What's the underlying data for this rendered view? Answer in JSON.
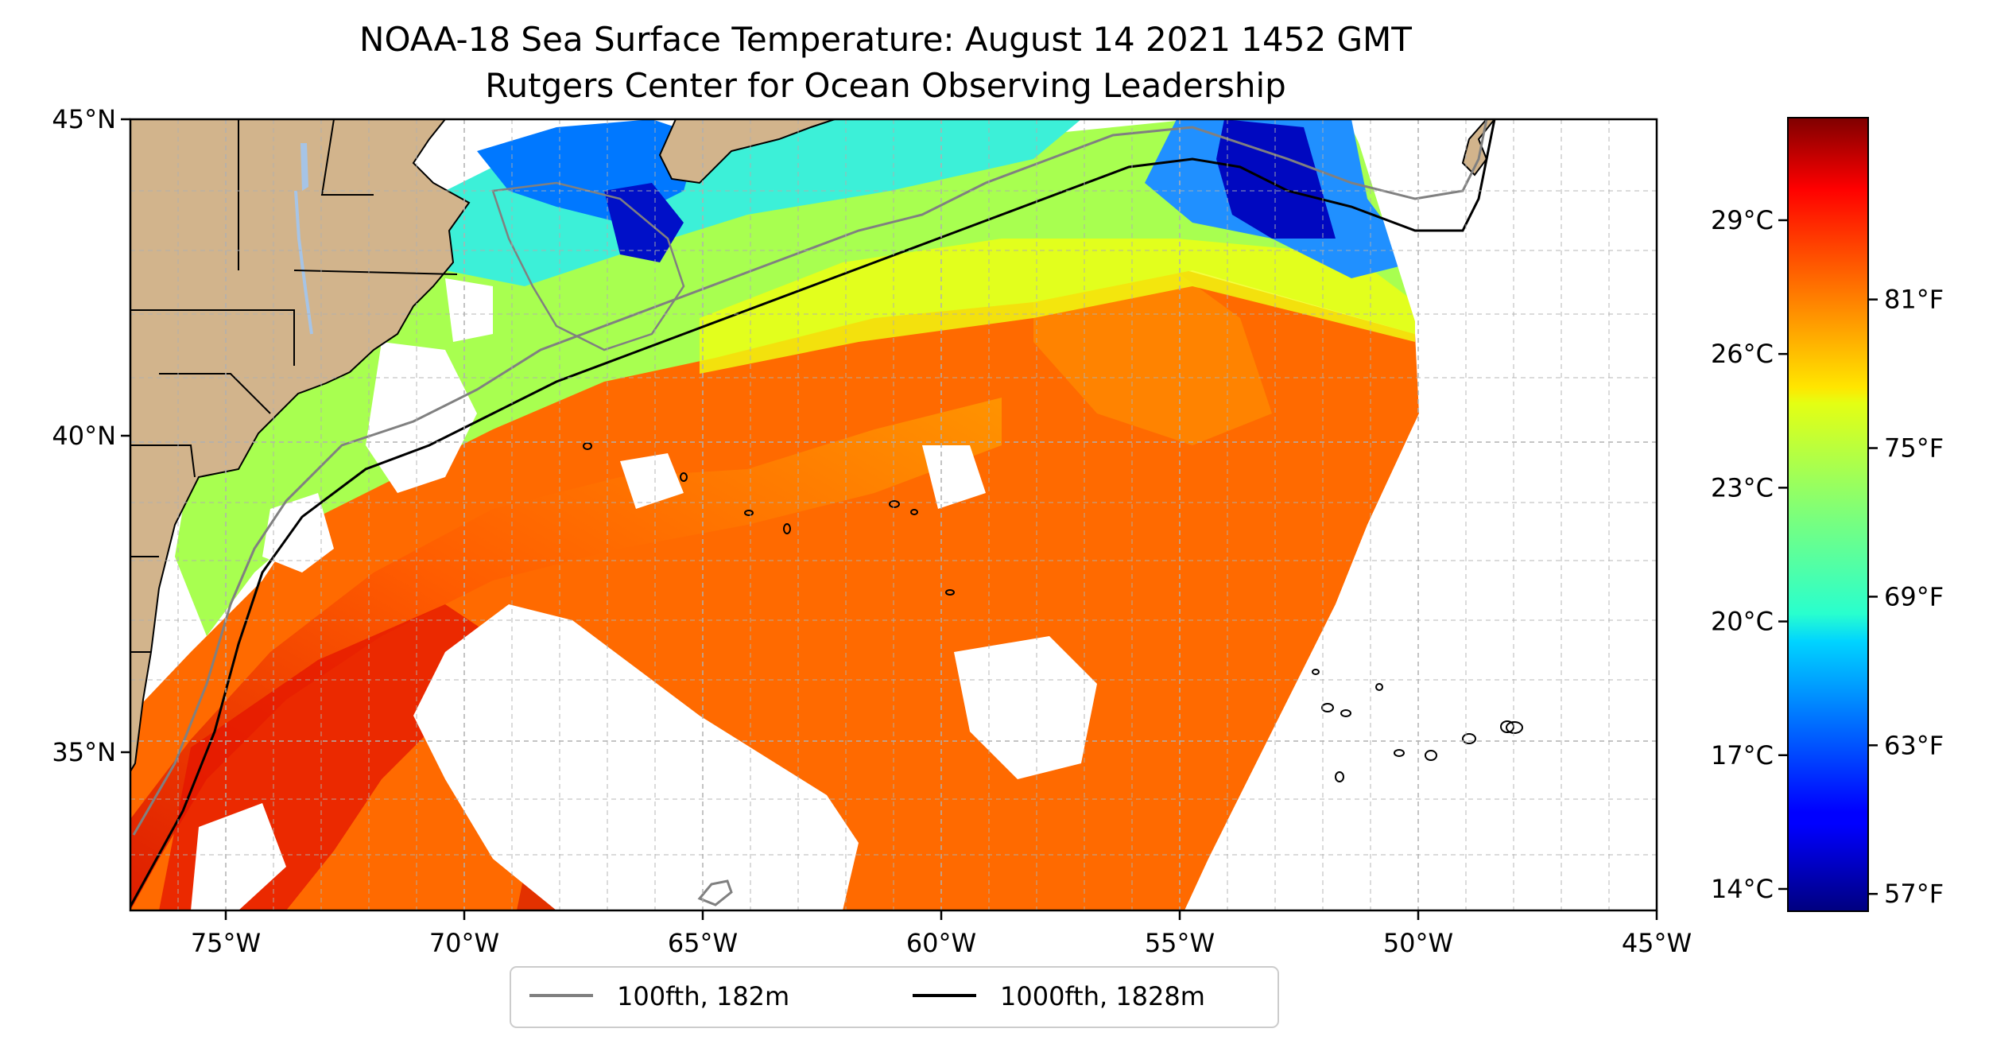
{
  "title": {
    "line1": "NOAA-18 Sea Surface Temperature: August 14 2021 1452 GMT",
    "line2": "Rutgers Center for Ocean Observing Leadership"
  },
  "map": {
    "extent": {
      "lon_min": -77,
      "lon_max": -45,
      "lat_min": 32.5,
      "lat_max": 45
    },
    "land_color": "#d2b48c",
    "lake_color": "#a6c4e6",
    "no_data_color": "#ffffff",
    "gridlines": true,
    "x_ticks": [
      {
        "value": -75,
        "label": "75°W"
      },
      {
        "value": -70,
        "label": "70°W"
      },
      {
        "value": -65,
        "label": "65°W"
      },
      {
        "value": -60,
        "label": "60°W"
      },
      {
        "value": -55,
        "label": "55°W"
      },
      {
        "value": -50,
        "label": "50°W"
      },
      {
        "value": -45,
        "label": "45°W"
      }
    ],
    "y_ticks": [
      {
        "value": 45,
        "label": "45°N"
      },
      {
        "value": 40,
        "label": "40°N"
      },
      {
        "value": 35,
        "label": "35°N"
      }
    ]
  },
  "legend": {
    "placement": "bottom-center",
    "items": [
      {
        "label": "100fth, 182m",
        "color": "#808080"
      },
      {
        "label": "1000fth, 1828m",
        "color": "#000000"
      }
    ]
  },
  "colorbar": {
    "colormap": "jet",
    "range_c": [
      13.5,
      31.3
    ],
    "celsius_ticks": [
      {
        "value": 29,
        "label": "29°C"
      },
      {
        "value": 26,
        "label": "26°C"
      },
      {
        "value": 23,
        "label": "23°C"
      },
      {
        "value": 20,
        "label": "20°C"
      },
      {
        "value": 17,
        "label": "17°C"
      },
      {
        "value": 14,
        "label": "14°C"
      }
    ],
    "fahrenheit_ticks": [
      {
        "value": 81,
        "label": "81°F"
      },
      {
        "value": 75,
        "label": "75°F"
      },
      {
        "value": 69,
        "label": "69°F"
      },
      {
        "value": 63,
        "label": "63°F"
      },
      {
        "value": 57,
        "label": "57°F"
      }
    ]
  }
}
